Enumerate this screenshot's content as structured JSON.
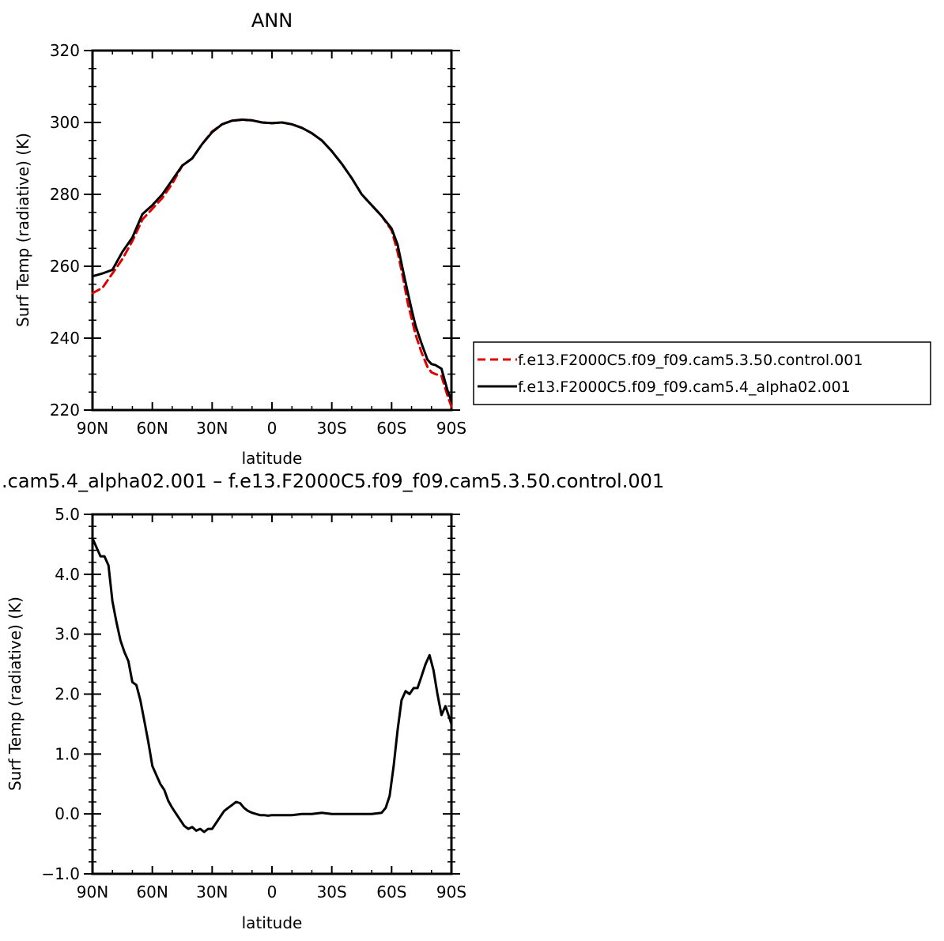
{
  "chart_data": [
    {
      "type": "line",
      "title": "ANN",
      "xlabel": "latitude",
      "ylabel": "Surf Temp (radiative) (K)",
      "xlim": [
        90,
        -90
      ],
      "ylim": [
        220,
        320
      ],
      "x_ticks": [
        90,
        60,
        30,
        0,
        -30,
        -60,
        -90
      ],
      "x_tick_labels": [
        "90N",
        "60N",
        "30N",
        "0",
        "30S",
        "60S",
        "90S"
      ],
      "y_ticks": [
        220,
        240,
        260,
        280,
        300,
        320
      ],
      "y_tick_labels": [
        "220",
        "240",
        "260",
        "280",
        "300",
        "320"
      ],
      "legend_position": "right",
      "series": [
        {
          "name": "f.e13.F2000C5.f09_f09.cam5.3.50.control.001",
          "color": "#e00000",
          "dash": "dashed",
          "x": [
            90,
            85,
            80,
            75,
            70,
            65,
            60,
            55,
            50,
            45,
            40,
            35,
            30,
            25,
            20,
            15,
            10,
            5,
            0,
            -5,
            -10,
            -15,
            -20,
            -25,
            -30,
            -35,
            -40,
            -45,
            -50,
            -55,
            -60,
            -63,
            -66,
            -68,
            -70,
            -72,
            -75,
            -78,
            -80,
            -82,
            -85,
            -88,
            -90
          ],
          "y": [
            252.5,
            254,
            258,
            262,
            267,
            273,
            276,
            279,
            283,
            288,
            290,
            294,
            297.5,
            299.5,
            300.5,
            300.7,
            300.6,
            300,
            299.8,
            300,
            299.5,
            298.5,
            297,
            295,
            292,
            288.5,
            284.5,
            280,
            277,
            274,
            270,
            264,
            256,
            250,
            245.5,
            241,
            236,
            232,
            230.5,
            230,
            229.5,
            224,
            221
          ]
        },
        {
          "name": "f.e13.F2000C5.f09_f09.cam5.4_alpha02.001",
          "color": "#000000",
          "dash": "solid",
          "x": [
            90,
            85,
            80,
            75,
            70,
            65,
            60,
            55,
            50,
            45,
            40,
            35,
            30,
            25,
            20,
            15,
            10,
            5,
            0,
            -5,
            -10,
            -15,
            -20,
            -25,
            -30,
            -35,
            -40,
            -45,
            -50,
            -55,
            -60,
            -63,
            -66,
            -68,
            -70,
            -72,
            -75,
            -78,
            -80,
            -82,
            -85,
            -88,
            -90
          ],
          "y": [
            257.2,
            258,
            259,
            264,
            268,
            274.5,
            277,
            280,
            284,
            288,
            290,
            294,
            297.3,
            299.5,
            300.5,
            300.8,
            300.6,
            300,
            299.8,
            300,
            299.5,
            298.5,
            297,
            295,
            292,
            288.5,
            284.5,
            280,
            277,
            274,
            270.5,
            266,
            258,
            253,
            248,
            243.5,
            238.5,
            234,
            232.8,
            232.5,
            231.5,
            225.5,
            222.5
          ]
        }
      ]
    },
    {
      "type": "line",
      "title": ".cam5.4_alpha02.001 – f.e13.F2000C5.f09_f09.cam5.3.50.control.001",
      "xlabel": "latitude",
      "ylabel": "Surf Temp (radiative) (K)",
      "xlim": [
        90,
        -90
      ],
      "ylim": [
        -1.0,
        5.0
      ],
      "x_ticks": [
        90,
        60,
        30,
        0,
        -30,
        -60,
        -90
      ],
      "x_tick_labels": [
        "90N",
        "60N",
        "30N",
        "0",
        "30S",
        "60S",
        "90S"
      ],
      "y_ticks": [
        -1.0,
        0.0,
        1.0,
        2.0,
        3.0,
        4.0,
        5.0
      ],
      "y_tick_labels": [
        "−1.0",
        "0.0",
        "1.0",
        "2.0",
        "3.0",
        "4.0",
        "5.0"
      ],
      "series": [
        {
          "color": "#000000",
          "dash": "solid",
          "x": [
            90,
            88,
            86,
            84,
            82,
            80,
            78,
            76,
            74,
            72,
            70,
            68,
            66,
            64,
            62,
            60,
            58,
            56,
            54,
            52,
            50,
            48,
            46,
            44,
            42,
            40,
            38,
            36,
            34,
            32,
            30,
            28,
            26,
            24,
            22,
            20,
            18,
            16,
            14,
            12,
            10,
            8,
            6,
            4,
            2,
            0,
            -5,
            -10,
            -15,
            -20,
            -25,
            -30,
            -35,
            -40,
            -45,
            -50,
            -55,
            -57,
            -59,
            -61,
            -63,
            -65,
            -67,
            -69,
            -71,
            -73,
            -75,
            -77,
            -79,
            -81,
            -83,
            -85,
            -87,
            -89,
            -90
          ],
          "y": [
            4.6,
            4.45,
            4.3,
            4.3,
            4.15,
            3.55,
            3.2,
            2.9,
            2.7,
            2.55,
            2.2,
            2.15,
            1.9,
            1.55,
            1.2,
            0.8,
            0.65,
            0.5,
            0.4,
            0.22,
            0.1,
            0.0,
            -0.1,
            -0.2,
            -0.25,
            -0.22,
            -0.28,
            -0.25,
            -0.3,
            -0.25,
            -0.25,
            -0.15,
            -0.05,
            0.05,
            0.1,
            0.15,
            0.2,
            0.18,
            0.1,
            0.05,
            0.02,
            0.0,
            -0.02,
            -0.02,
            -0.03,
            -0.02,
            -0.02,
            -0.02,
            0.0,
            0.0,
            0.02,
            0.0,
            0.0,
            0.0,
            0.0,
            0.0,
            0.02,
            0.1,
            0.3,
            0.8,
            1.4,
            1.9,
            2.05,
            2.0,
            2.1,
            2.1,
            2.3,
            2.5,
            2.65,
            2.4,
            2.0,
            1.65,
            1.8,
            1.6,
            1.5
          ]
        }
      ]
    }
  ]
}
